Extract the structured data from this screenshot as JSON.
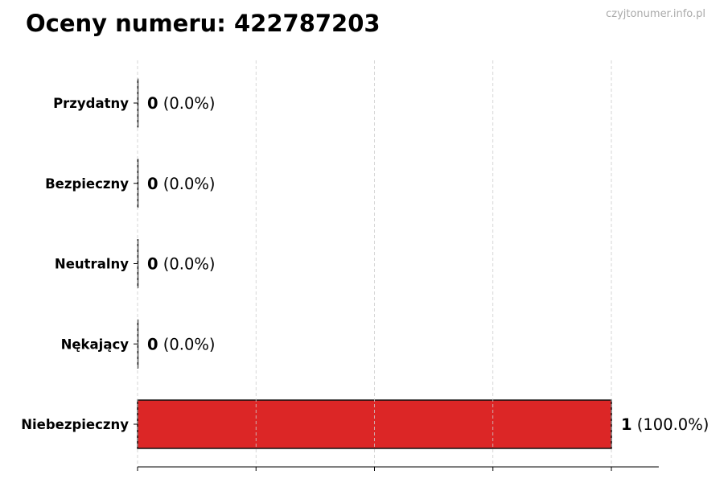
{
  "watermark": "czyjtonumer.info.pl",
  "chart_data": {
    "type": "bar",
    "orientation": "horizontal",
    "title": "Oceny numeru: 422787203",
    "categories": [
      "Przydatny",
      "Bezpieczny",
      "Neutralny",
      "Nękający",
      "Niebezpieczny"
    ],
    "values": [
      0,
      0,
      0,
      0,
      1
    ],
    "data_labels": [
      {
        "count": "0",
        "percent": "(0.0%)"
      },
      {
        "count": "0",
        "percent": "(0.0%)"
      },
      {
        "count": "0",
        "percent": "(0.0%)"
      },
      {
        "count": "0",
        "percent": "(0.0%)"
      },
      {
        "count": "1",
        "percent": "(100.0%)"
      }
    ],
    "xlim": [
      0,
      1.1
    ],
    "xticks": [
      0,
      0.25,
      0.5,
      0.75,
      1.0
    ],
    "xtick_labels_visible": false,
    "grid": "x dashed",
    "bar_color": "#dc2626",
    "bar_edge_color": "#111111"
  }
}
